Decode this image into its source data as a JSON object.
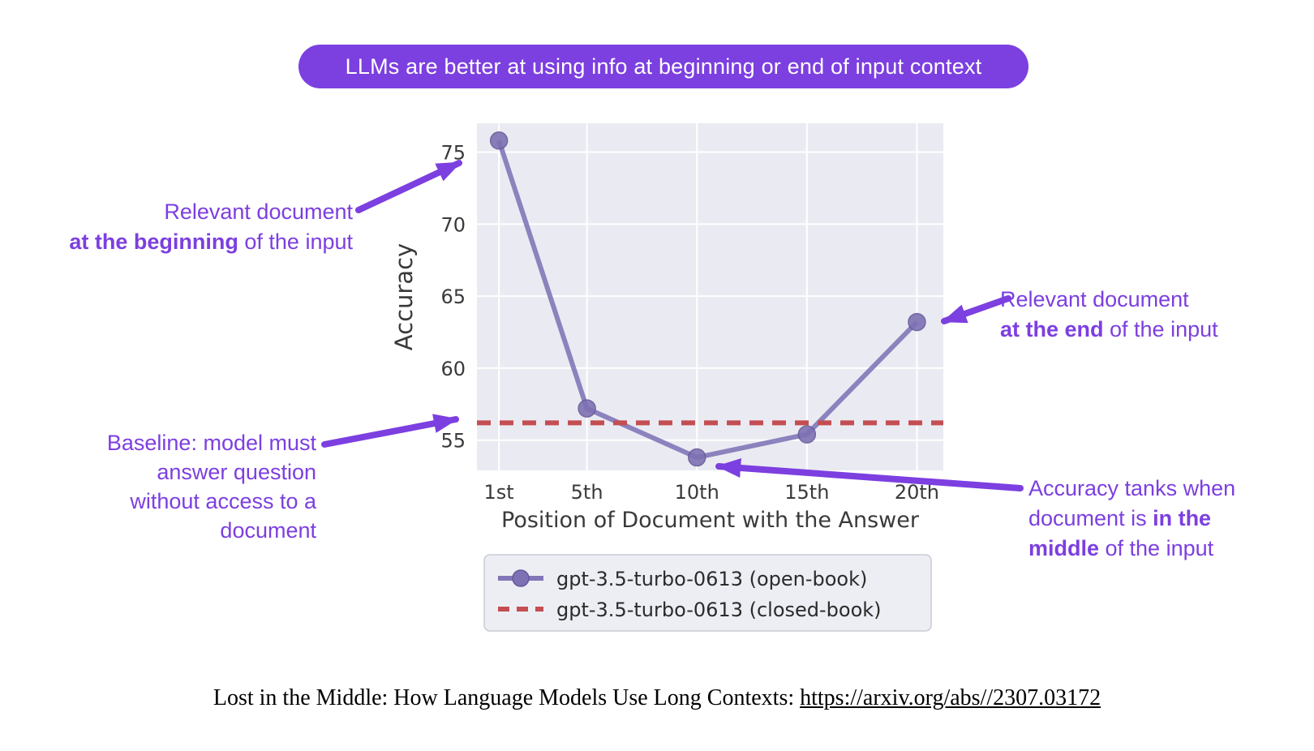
{
  "banner": {
    "text": "LLMs are better at using info at beginning or end of input context"
  },
  "colors": {
    "accent_purple": "#7c3fe0",
    "series_purple": "#8277b8",
    "marker_fill": "#7e71b3",
    "marker_edge": "#665a99",
    "baseline_red": "#c44e52",
    "plot_bg": "#eaebf2",
    "grid": "#ffffff",
    "axis_text": "#3a3a3a",
    "legend_bg": "#edeef4",
    "legend_border": "#c9cbd4",
    "legend_text": "#2b2b2b"
  },
  "chart_data": {
    "type": "line",
    "xlabel": "Position of Document with the Answer",
    "ylabel": "Accuracy",
    "x_tick_labels": [
      "1st",
      "5th",
      "10th",
      "15th",
      "20th"
    ],
    "x_positions": [
      1,
      5,
      10,
      15,
      20
    ],
    "xlim": [
      0,
      21.2
    ],
    "ylim": [
      52.9,
      77.0
    ],
    "yticks": [
      55,
      60,
      65,
      70,
      75
    ],
    "grid": true,
    "legend_position": "below",
    "series": [
      {
        "name": "gpt-3.5-turbo-0613 (open-book)",
        "style": "line-markers",
        "x": [
          1,
          5,
          10,
          15,
          20
        ],
        "values": [
          75.8,
          57.2,
          53.8,
          55.4,
          63.2
        ]
      },
      {
        "name": "gpt-3.5-turbo-0613 (closed-book)",
        "style": "dashed-hline",
        "value": 56.2
      }
    ]
  },
  "annotations": {
    "beginning": {
      "lines": [
        [
          {
            "t": "Relevant document",
            "b": false
          }
        ],
        [
          {
            "t": "at the beginning",
            "b": true
          },
          {
            "t": " of the input",
            "b": false
          }
        ]
      ]
    },
    "baseline": {
      "lines": [
        [
          {
            "t": "Baseline: model must",
            "b": false
          }
        ],
        [
          {
            "t": "answer question",
            "b": false
          }
        ],
        [
          {
            "t": "without access to a",
            "b": false
          }
        ],
        [
          {
            "t": "document",
            "b": false
          }
        ]
      ]
    },
    "end": {
      "lines": [
        [
          {
            "t": "Relevant document",
            "b": false
          }
        ],
        [
          {
            "t": "at the end",
            "b": true
          },
          {
            "t": " of the input",
            "b": false
          }
        ]
      ]
    },
    "middle": {
      "lines": [
        [
          {
            "t": "Accuracy tanks when",
            "b": false
          }
        ],
        [
          {
            "t": "document is ",
            "b": false
          },
          {
            "t": "in the",
            "b": true
          }
        ],
        [
          {
            "t": "middle",
            "b": true
          },
          {
            "t": " of the input",
            "b": false
          }
        ]
      ]
    }
  },
  "caption": {
    "prefix": "Lost in the Middle: How Language Models Use Long Contexts: ",
    "link": "https://arxiv.org/abs//2307.03172"
  }
}
